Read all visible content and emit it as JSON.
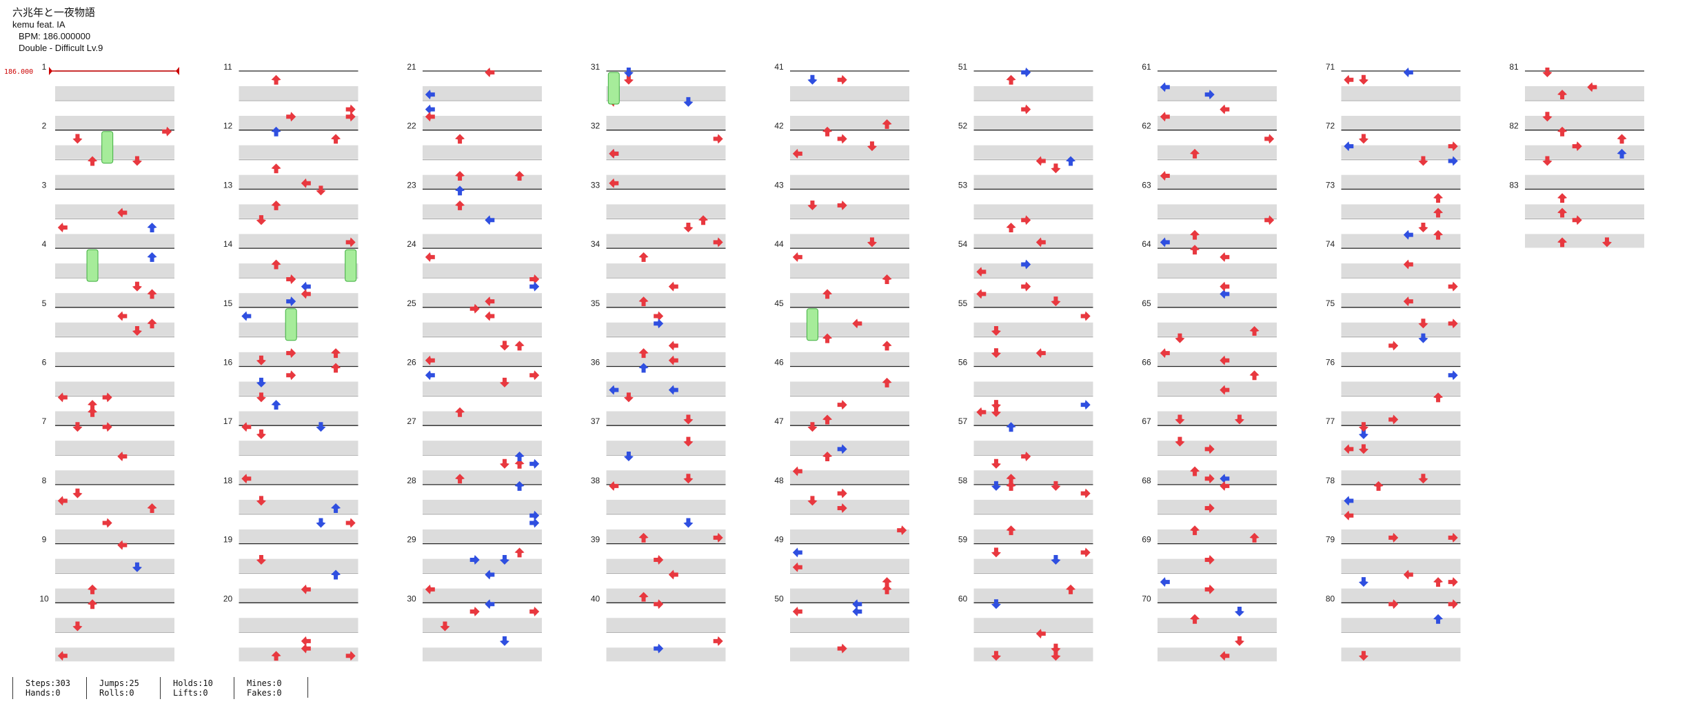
{
  "song": {
    "title": "六兆年と一夜物語",
    "artist": "kemu feat. IA",
    "bpm_label": "BPM: 186.000000",
    "chart_label": "Double - Difficult  Lv.9",
    "bpm_marker": "186.000"
  },
  "colors": {
    "red_arrow": "#e8383f",
    "blue_arrow": "#2f4fe0",
    "hold_fill": "#a6ec9a",
    "hold_stroke": "#3fae3f",
    "stripe": "#dcdcdc",
    "bpm_marker": "#cc0000"
  },
  "measures_total": 83,
  "stats": {
    "steps": "Steps:303",
    "hands": "Hands:0",
    "jumps": "Jumps:25",
    "rolls": "Rolls:0",
    "holds": "Holds:10",
    "lifts": "Lifts:0",
    "mines": "Mines:0",
    "fakes": "Fakes:0"
  }
}
